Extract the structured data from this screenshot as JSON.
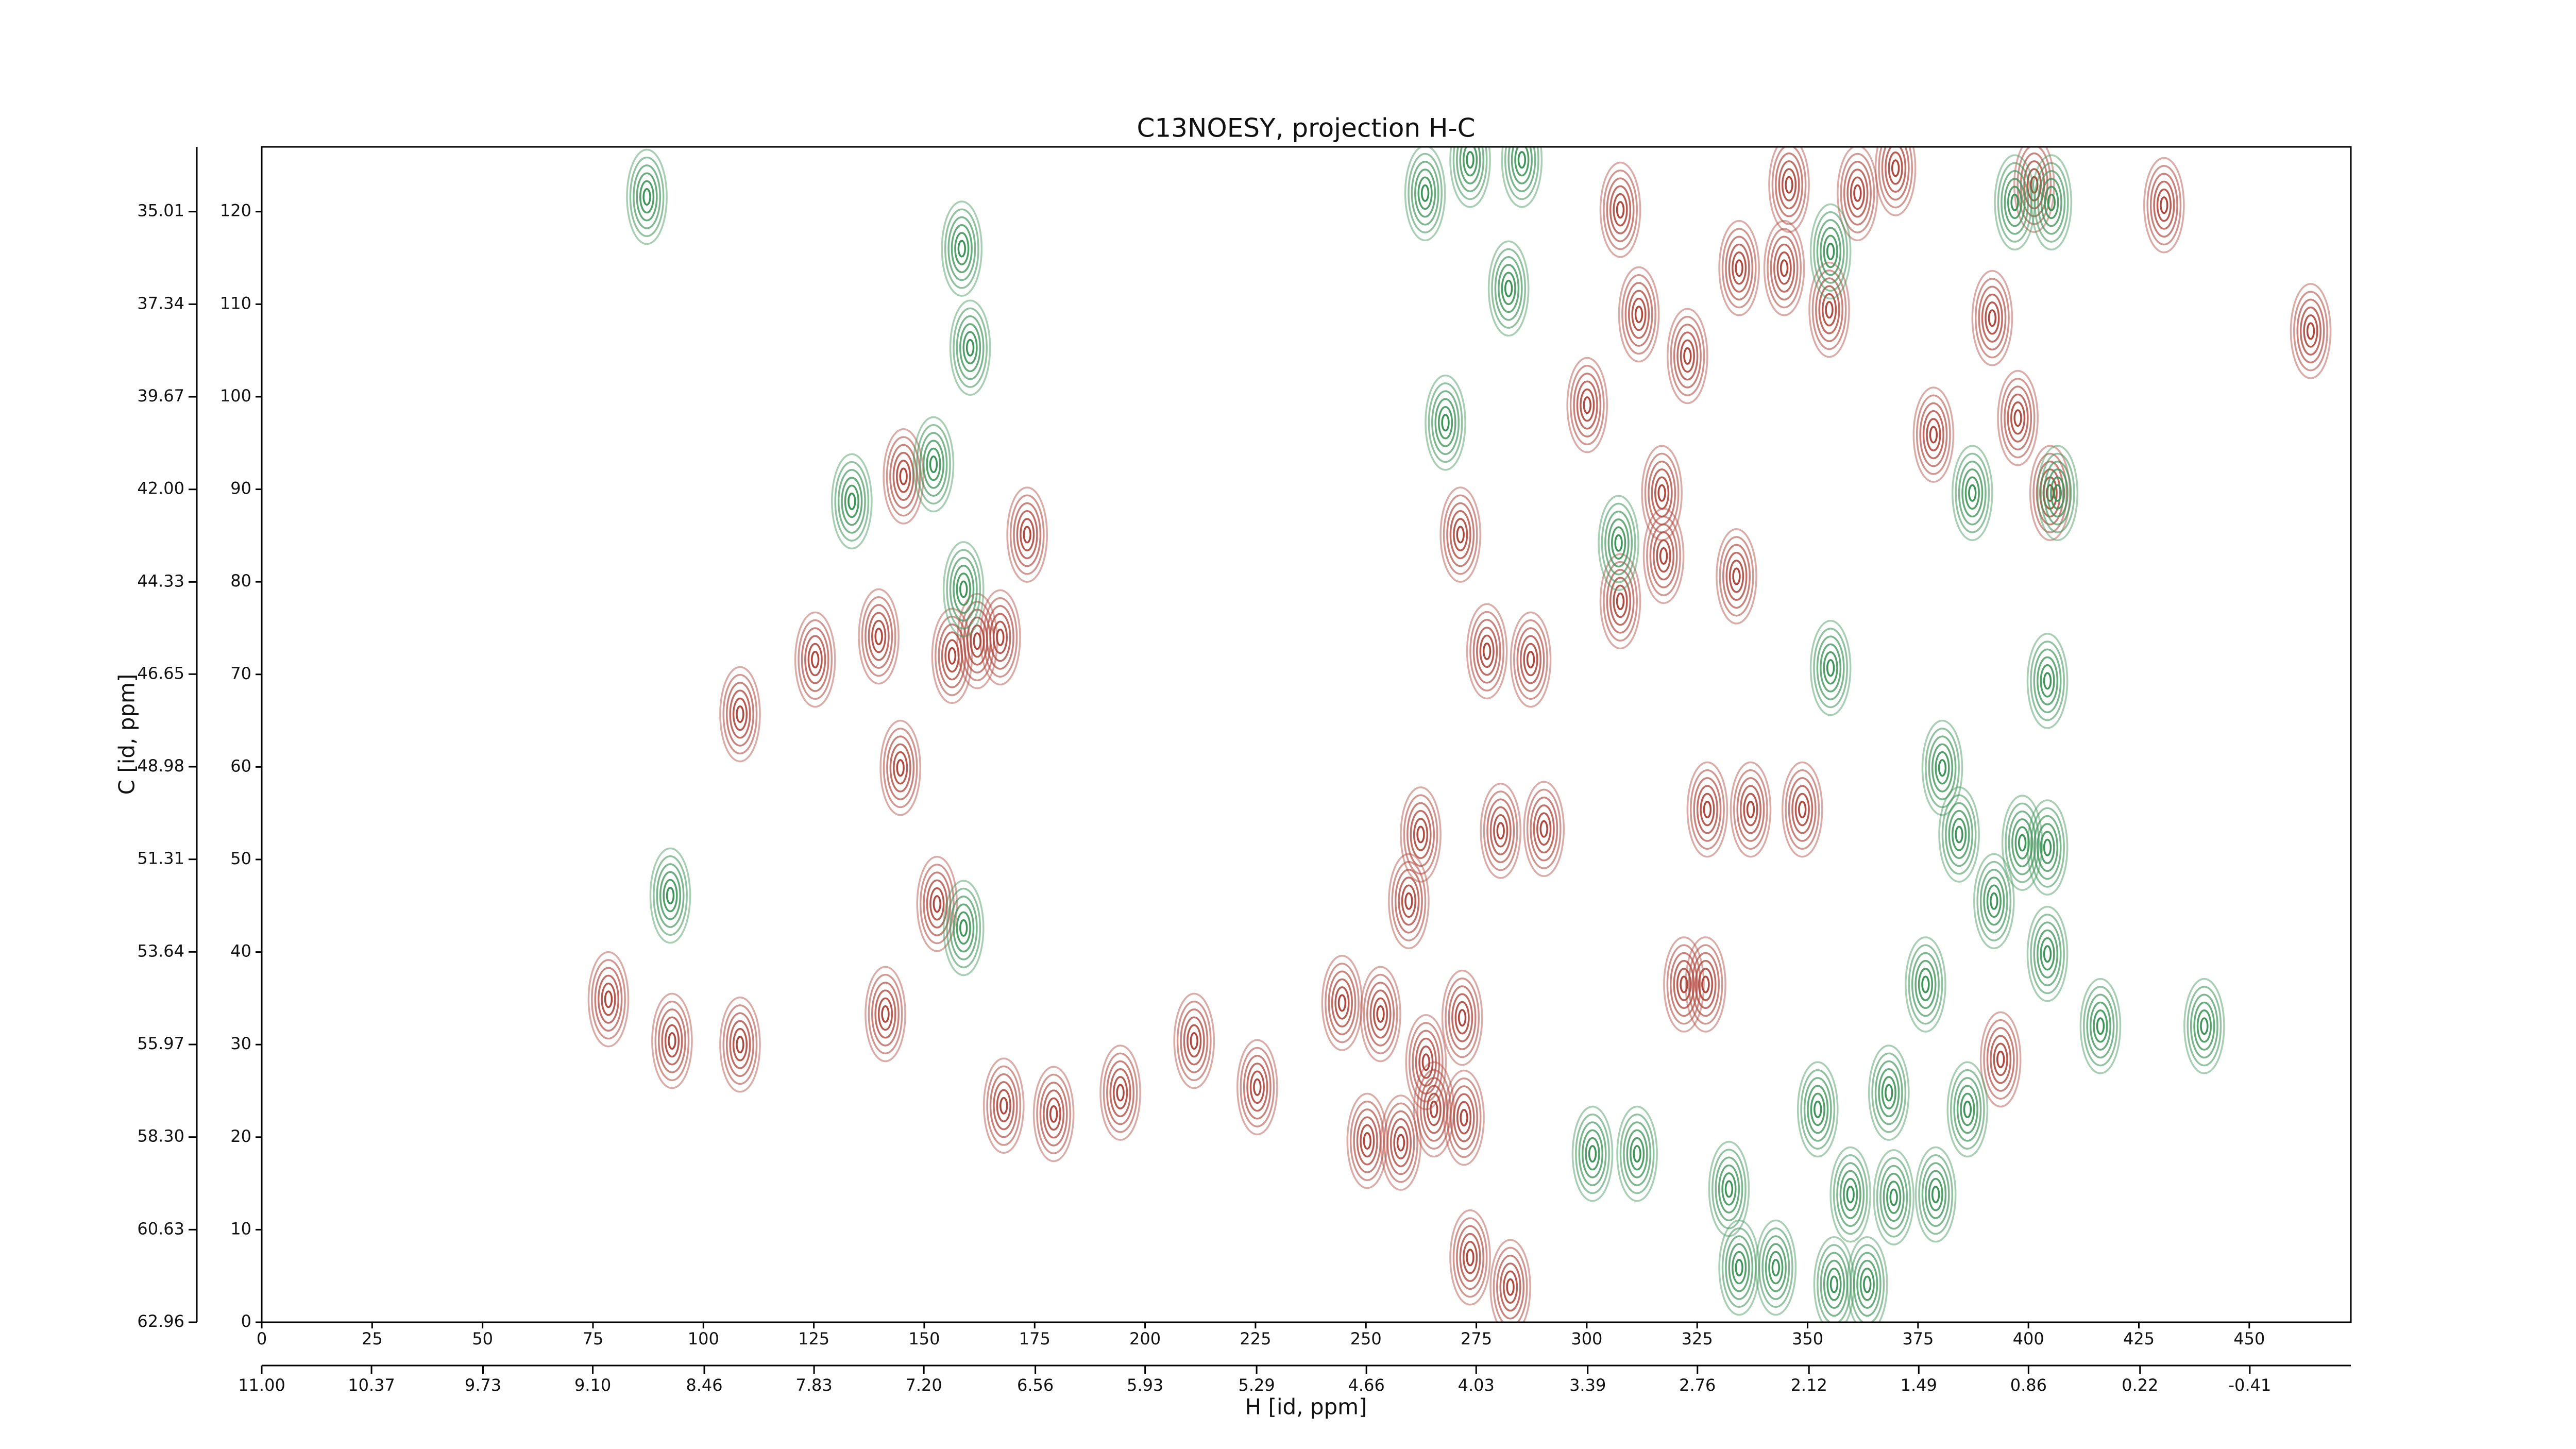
{
  "chart_data": {
    "type": "contour",
    "title": "C13NOESY, projection H-C",
    "xlabel": "H [id, ppm]",
    "ylabel": "C [id, ppm]",
    "xlim": [
      0,
      473
    ],
    "xticks": [
      0,
      25,
      50,
      75,
      100,
      125,
      150,
      175,
      200,
      225,
      250,
      275,
      300,
      325,
      350,
      375,
      400,
      425,
      450
    ],
    "ylim": [
      0,
      127
    ],
    "yticks": [
      0,
      10,
      20,
      30,
      40,
      50,
      60,
      70,
      80,
      90,
      100,
      110,
      120
    ],
    "x2lim": [
      11.0,
      -0.99
    ],
    "x2ticks": [
      {
        "value": 11.0,
        "label": "11.00"
      },
      10.37,
      9.73,
      {
        "value": 9.1,
        "label": "9.10"
      },
      8.46,
      7.83,
      {
        "value": 7.2,
        "label": "7.20"
      },
      6.56,
      5.93,
      5.29,
      4.66,
      4.03,
      3.39,
      2.76,
      2.12,
      1.49,
      0.86,
      0.22,
      -0.41
    ],
    "y2lim": [
      62.96,
      33.38
    ],
    "y2ticks": [
      62.96,
      60.63,
      {
        "value": 58.3,
        "label": "58.30"
      },
      55.97,
      53.64,
      51.31,
      48.98,
      46.65,
      44.33,
      {
        "value": 42.0,
        "label": "42.00"
      },
      39.67,
      37.34,
      35.01
    ],
    "series": [
      {
        "color": "#b0463c",
        "x": [
          145.3,
          125.3,
          139.7,
          156.3,
          162,
          167.2,
          173.3,
          144.6,
          152.9,
          141.2,
          168,
          179.3,
          194.4,
          211.1,
          225.4,
          244.6,
          253.3,
          259.7,
          262.4,
          271.8,
          263.6,
          272.2,
          265.4,
          250.3,
          257.9,
          273.6,
          282.7,
          271.4,
          277.4,
          287.3,
          280.5,
          290.3,
          300.1,
          307.6,
          311.8,
          317,
          317.4,
          322.8,
          326.9,
          327.3,
          333.9,
          337.1,
          345.8,
          344.7,
          348.8,
          354.9,
          361.3,
          369.9,
          391.8,
          393.7,
          401.3,
          430.7,
          463.9,
          334.5,
          397.6,
          307.6,
          378.5,
          404.9,
          92.9,
          108.3,
          108.3,
          78.5,
          322
        ],
        "values": [
          91.4,
          71.6,
          74.1,
          72,
          73.6,
          74,
          85.1,
          59.9,
          45.2,
          33.3,
          23.4,
          22.5,
          24.8,
          30.4,
          25.4,
          34.5,
          33.3,
          45.5,
          52.7,
          32.9,
          28.1,
          22.1,
          23,
          19.6,
          19.4,
          7,
          3.8,
          85.1,
          72.5,
          71.6,
          53.1,
          53.3,
          99.1,
          77.9,
          108.9,
          89.6,
          82.8,
          104.4,
          36.5,
          55.4,
          80.6,
          55.4,
          122.9,
          113.9,
          55.4,
          109.4,
          122,
          124.7,
          108.5,
          28.4,
          122.9,
          120.7,
          107.1,
          113.9,
          97.7,
          120.2,
          95.9,
          89.6,
          30.4,
          30,
          65.7,
          34.9,
          36.5
        ]
      },
      {
        "color": "#3d9458",
        "x": [
          263.4,
          282.3,
          273.6,
          285.3,
          268,
          158.5,
          160.4,
          133.6,
          152.1,
          87.2,
          158.9,
          311.4,
          301.3,
          332.2,
          334.5,
          342.8,
          352.3,
          355.2,
          355.2,
          359.7,
          368.4,
          369.5,
          376.7,
          380.5,
          384.3,
          392.2,
          398.6,
          404.3,
          404.3,
          404.3,
          406.6,
          416.3,
          439.8,
          386.2,
          356,
          363.5,
          92.5,
          158.9,
          405.2,
          396.9,
          387.3,
          379,
          307.2
        ],
        "values": [
          122,
          111.7,
          125.6,
          125.6,
          97.2,
          116,
          105.3,
          88.7,
          92.7,
          121.6,
          79.2,
          18.2,
          18.2,
          14.4,
          5.9,
          5.9,
          23,
          70.7,
          115.7,
          13.8,
          24.8,
          13.5,
          36.5,
          59.9,
          52.7,
          45.5,
          51.8,
          51.3,
          39.8,
          69.3,
          89.6,
          32,
          32,
          23,
          4.1,
          4.1,
          46.1,
          42.6,
          121,
          121,
          89.6,
          13.8,
          84.2
        ]
      }
    ]
  }
}
